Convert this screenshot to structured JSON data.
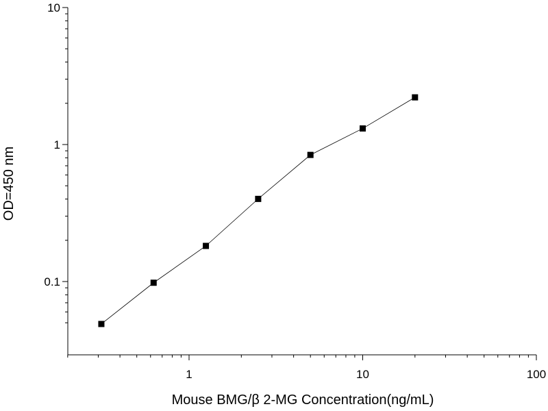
{
  "chart_data": {
    "type": "scatter",
    "xlabel": "Mouse BMG/β 2-MG  Concentration(ng/mL)",
    "ylabel": "OD=450 nm",
    "xscale": "log",
    "yscale": "log",
    "xlim": [
      0.2,
      100
    ],
    "ylim": [
      0.045,
      10
    ],
    "grid": false,
    "x_ticks": [
      {
        "value": 1,
        "label": "1"
      },
      {
        "value": 10,
        "label": "10"
      },
      {
        "value": 100,
        "label": "100"
      }
    ],
    "y_ticks": [
      {
        "value": 0.1,
        "label": "0.1"
      },
      {
        "value": 1,
        "label": "1"
      },
      {
        "value": 10,
        "label": "10"
      }
    ],
    "series": [
      {
        "marker": "square",
        "line": true,
        "color": "#000000",
        "x": [
          0.3125,
          0.625,
          1.25,
          2.5,
          5,
          10,
          20
        ],
        "y": [
          0.049,
          0.098,
          0.182,
          0.401,
          0.84,
          1.31,
          2.21
        ]
      }
    ]
  }
}
